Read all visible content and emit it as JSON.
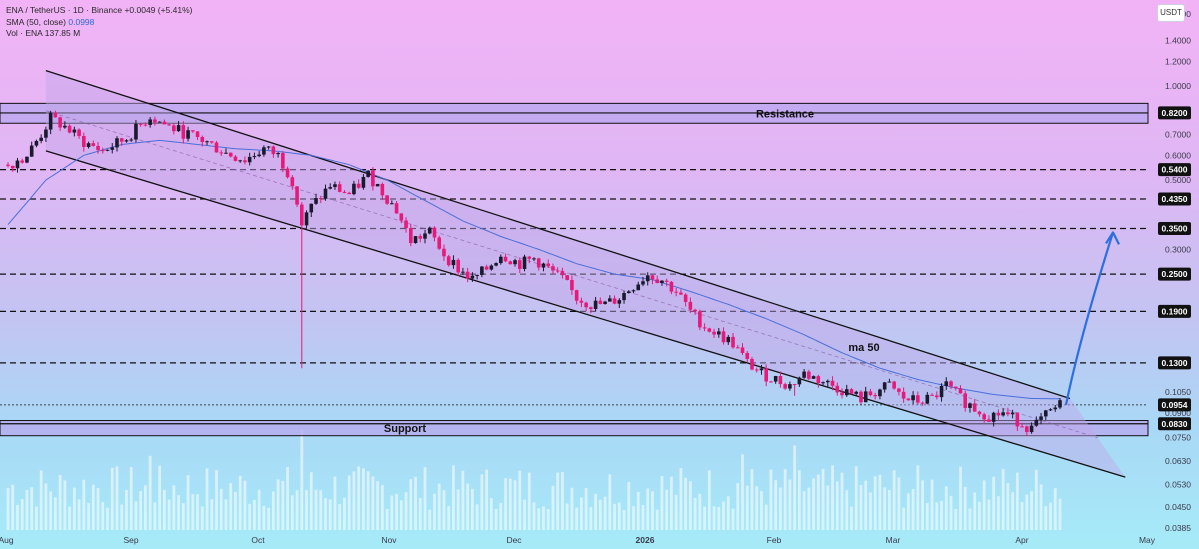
{
  "legend": {
    "symbol_line": "ENA / TetherUS · 1D · Binance",
    "change": "+0.0049 (+5.41%)",
    "sma_label": "SMA (50, close)",
    "sma_value": "0.0998",
    "vol_label": "Vol · ENA",
    "vol_value": "137.85 M"
  },
  "currency": "USDT",
  "colors": {
    "up": "#1a1a2e",
    "down": "#e8197a",
    "sma": "#4a6fd8",
    "arrow": "#2e6fe0",
    "channel_fill": "#c2a7e8"
  },
  "chart_data": {
    "type": "candlestick",
    "y_scale": "log",
    "ylim": [
      0.0385,
      1.7
    ],
    "y_ticks": [
      "1.7000",
      "1.4000",
      "1.2000",
      "1.0000",
      "0.8200",
      "0.7000",
      "0.6000",
      "0.5000",
      "0.4350",
      "0.3500",
      "0.3000",
      "0.2500",
      "0.1900",
      "0.1300",
      "0.1050",
      "0.0900",
      "0.0750",
      "0.0630",
      "0.0530",
      "0.0450",
      "0.0385"
    ],
    "x_labels": [
      "Aug",
      "Sep",
      "Oct",
      "Nov",
      "Dec",
      "2026",
      "Feb",
      "Mar",
      "Apr",
      "May"
    ],
    "levels": [
      {
        "label": "0.8200",
        "value": 0.82,
        "style": "solid"
      },
      {
        "label": "0.5400",
        "value": 0.54,
        "style": "dashed"
      },
      {
        "label": "0.4350",
        "value": 0.435,
        "style": "dashed"
      },
      {
        "label": "0.3500",
        "value": 0.35,
        "style": "dashed"
      },
      {
        "label": "0.2500",
        "value": 0.25,
        "style": "dashed"
      },
      {
        "label": "0.1900",
        "value": 0.19,
        "style": "dashed"
      },
      {
        "label": "0.1300",
        "value": 0.13,
        "style": "dashed"
      },
      {
        "label": "0.0954",
        "value": 0.0954,
        "style": "dotted"
      },
      {
        "label": "0.0830",
        "value": 0.083,
        "style": "solid"
      }
    ],
    "resistance_zone": {
      "label": "Resistance",
      "low": 0.76,
      "high": 0.88
    },
    "support_zone": {
      "label": "Support",
      "low": 0.076,
      "high": 0.085
    },
    "annotations": [
      {
        "text": "ma 50"
      }
    ],
    "current_price": "0.0954",
    "close_path": [
      [
        0,
        0.56
      ],
      [
        4,
        0.6
      ],
      [
        7,
        0.7
      ],
      [
        9,
        0.79
      ],
      [
        12,
        0.74
      ],
      [
        16,
        0.66
      ],
      [
        20,
        0.62
      ],
      [
        25,
        0.68
      ],
      [
        30,
        0.8
      ],
      [
        34,
        0.74
      ],
      [
        38,
        0.7
      ],
      [
        42,
        0.66
      ],
      [
        46,
        0.61
      ],
      [
        50,
        0.58
      ],
      [
        54,
        0.63
      ],
      [
        57,
        0.6
      ],
      [
        60,
        0.5
      ],
      [
        62,
        0.36
      ],
      [
        64,
        0.41
      ],
      [
        68,
        0.48
      ],
      [
        72,
        0.45
      ],
      [
        76,
        0.52
      ],
      [
        79,
        0.46
      ],
      [
        82,
        0.4
      ],
      [
        85,
        0.32
      ],
      [
        89,
        0.34
      ],
      [
        92,
        0.29
      ],
      [
        95,
        0.26
      ],
      [
        98,
        0.24
      ],
      [
        101,
        0.26
      ],
      [
        104,
        0.29
      ],
      [
        108,
        0.27
      ],
      [
        111,
        0.28
      ],
      [
        114,
        0.26
      ],
      [
        117,
        0.24
      ],
      [
        120,
        0.21
      ],
      [
        123,
        0.2
      ],
      [
        126,
        0.2
      ],
      [
        129,
        0.21
      ],
      [
        132,
        0.23
      ],
      [
        135,
        0.25
      ],
      [
        138,
        0.24
      ],
      [
        141,
        0.22
      ],
      [
        144,
        0.19
      ],
      [
        147,
        0.17
      ],
      [
        150,
        0.16
      ],
      [
        153,
        0.15
      ],
      [
        156,
        0.13
      ],
      [
        159,
        0.12
      ],
      [
        162,
        0.115
      ],
      [
        165,
        0.11
      ],
      [
        168,
        0.12
      ],
      [
        171,
        0.115
      ],
      [
        174,
        0.11
      ],
      [
        177,
        0.105
      ],
      [
        180,
        0.1
      ],
      [
        183,
        0.105
      ],
      [
        186,
        0.11
      ],
      [
        189,
        0.1
      ],
      [
        192,
        0.098
      ],
      [
        195,
        0.1
      ],
      [
        198,
        0.11
      ],
      [
        201,
        0.1
      ],
      [
        204,
        0.093
      ],
      [
        207,
        0.088
      ],
      [
        210,
        0.09
      ],
      [
        213,
        0.085
      ],
      [
        216,
        0.08
      ],
      [
        219,
        0.088
      ],
      [
        222,
        0.0954
      ]
    ],
    "sma50_path": [
      [
        0,
        0.36
      ],
      [
        8,
        0.5
      ],
      [
        16,
        0.6
      ],
      [
        24,
        0.65
      ],
      [
        32,
        0.67
      ],
      [
        40,
        0.65
      ],
      [
        48,
        0.63
      ],
      [
        56,
        0.62
      ],
      [
        64,
        0.6
      ],
      [
        72,
        0.56
      ],
      [
        80,
        0.5
      ],
      [
        88,
        0.43
      ],
      [
        96,
        0.37
      ],
      [
        104,
        0.33
      ],
      [
        112,
        0.3
      ],
      [
        120,
        0.27
      ],
      [
        128,
        0.25
      ],
      [
        136,
        0.24
      ],
      [
        144,
        0.22
      ],
      [
        152,
        0.2
      ],
      [
        160,
        0.18
      ],
      [
        168,
        0.16
      ],
      [
        176,
        0.14
      ],
      [
        184,
        0.125
      ],
      [
        192,
        0.115
      ],
      [
        200,
        0.108
      ],
      [
        208,
        0.103
      ],
      [
        216,
        0.1
      ],
      [
        222,
        0.0998
      ]
    ],
    "channel": {
      "upper": [
        [
          8,
          1.12
        ],
        [
          222,
          0.1
        ]
      ],
      "lower": [
        [
          8,
          0.62
        ],
        [
          240,
          0.056
        ]
      ]
    },
    "projection": {
      "to_value": 0.34
    }
  }
}
